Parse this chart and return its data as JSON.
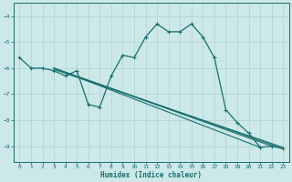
{
  "xlabel": "Humidex (Indice chaleur)",
  "ylabel": "",
  "xlim": [
    -0.5,
    23.5
  ],
  "ylim": [
    -9.6,
    -3.5
  ],
  "yticks": [
    -9,
    -8,
    -7,
    -6,
    -5,
    -4
  ],
  "xticks": [
    0,
    1,
    2,
    3,
    4,
    5,
    6,
    7,
    8,
    9,
    10,
    11,
    12,
    13,
    14,
    15,
    16,
    17,
    18,
    19,
    20,
    21,
    22,
    23
  ],
  "bg_color": "#cce8e8",
  "grid_color": "#b8d8d8",
  "line_color": "#1a6e6e",
  "main_line": {
    "x": [
      0,
      1,
      2,
      3,
      4,
      5,
      6,
      7,
      8,
      9,
      10,
      11,
      12,
      13,
      14,
      15,
      16,
      17,
      18,
      19,
      20,
      21,
      22,
      23
    ],
    "y": [
      -5.6,
      -6.0,
      -6.0,
      -6.1,
      -6.3,
      -6.1,
      -7.4,
      -7.5,
      -6.3,
      -5.5,
      -5.6,
      -4.8,
      -4.3,
      -4.6,
      -4.6,
      -4.3,
      -4.8,
      -5.6,
      -7.6,
      -8.1,
      -8.5,
      -9.05,
      -9.0,
      -9.1
    ]
  },
  "straight_lines": [
    {
      "x": [
        3,
        21
      ],
      "y": [
        -6.0,
        -9.05
      ]
    },
    {
      "x": [
        3,
        22
      ],
      "y": [
        -6.0,
        -9.0
      ]
    },
    {
      "x": [
        3,
        23
      ],
      "y": [
        -6.0,
        -9.1
      ]
    },
    {
      "x": [
        3,
        23
      ],
      "y": [
        -6.05,
        -9.05
      ]
    }
  ]
}
